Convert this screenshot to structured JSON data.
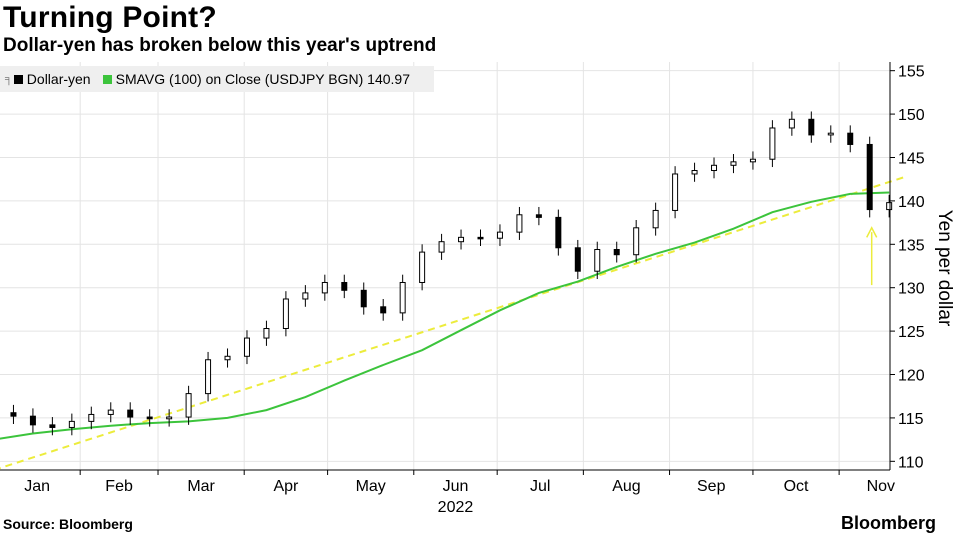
{
  "title": "Turning Point?",
  "subtitle": "Dollar-yen has broken below this year's uptrend",
  "source": "Source: Bloomberg",
  "brand": "Bloomberg",
  "legend": {
    "items": [
      {
        "label": "Dollar-yen",
        "color": "#000000",
        "icon": "candlestick-icon"
      },
      {
        "label": "SMAVG (100)  on Close (USDJPY BGN) 140.97",
        "color": "#3cc43c"
      }
    ]
  },
  "colors": {
    "price": "#000000",
    "sma": "#3cc43c",
    "trend": "#ecec3c",
    "arrow": "#ecec3c",
    "grid": "#e4e4e4"
  },
  "chart_data": {
    "type": "line",
    "title": "Turning Point?",
    "subtitle": "Dollar-yen has broken below this year's uptrend",
    "ylabel": "Yen per dollar",
    "xlabel": "2022",
    "x_axis_year": "2022",
    "x_tick_labels": [
      "Jan",
      "Feb",
      "Mar",
      "Apr",
      "May",
      "Jun",
      "Jul",
      "Aug",
      "Sep",
      "Oct",
      "Nov"
    ],
    "y_ticks": [
      110,
      115,
      120,
      125,
      130,
      135,
      140,
      145,
      150,
      155
    ],
    "ylim": [
      109,
      156
    ],
    "y_axis_side": "right",
    "grid": true,
    "legend_position": "top-left",
    "last_sma_value": 140.97,
    "series": [
      {
        "name": "Dollar-yen",
        "style": "candlestick",
        "x": [
          "Jan 1",
          "Jan 8",
          "Jan 15",
          "Jan 22",
          "Jan 29",
          "Feb 5",
          "Feb 12",
          "Feb 19",
          "Feb 26",
          "Mar 5",
          "Mar 12",
          "Mar 19",
          "Mar 26",
          "Apr 2",
          "Apr 9",
          "Apr 16",
          "Apr 23",
          "Apr 30",
          "May 7",
          "May 14",
          "May 21",
          "May 28",
          "Jun 4",
          "Jun 11",
          "Jun 18",
          "Jun 25",
          "Jul 2",
          "Jul 9",
          "Jul 16",
          "Jul 23",
          "Jul 30",
          "Aug 6",
          "Aug 13",
          "Aug 20",
          "Aug 27",
          "Sep 3",
          "Sep 10",
          "Sep 17",
          "Sep 24",
          "Oct 1",
          "Oct 8",
          "Oct 15",
          "Oct 22",
          "Oct 29",
          "Nov 5",
          "Nov 12",
          "Nov 19"
        ],
        "values": [
          115.6,
          115.2,
          114.2,
          113.9,
          114.6,
          115.4,
          115.9,
          115.1,
          114.9,
          115.1,
          117.8,
          121.7,
          122.1,
          124.2,
          125.3,
          128.7,
          129.4,
          130.6,
          129.7,
          127.8,
          127.1,
          130.6,
          134.1,
          135.3,
          135.8,
          135.7,
          136.4,
          138.4,
          138.1,
          134.6,
          131.9,
          134.4,
          133.8,
          136.9,
          138.9,
          143.1,
          143.5,
          144.1,
          144.5,
          144.8,
          148.4,
          149.4,
          147.6,
          147.8,
          146.5,
          139.0,
          139.8
        ]
      },
      {
        "name": "SMAVG (100)  on Close (USDJPY BGN)",
        "style": "line",
        "x": [
          "Jan 1",
          "Jan 15",
          "Jan 29",
          "Feb 12",
          "Feb 26",
          "Mar 12",
          "Mar 26",
          "Apr 9",
          "Apr 23",
          "May 7",
          "May 21",
          "Jun 4",
          "Jun 18",
          "Jul 2",
          "Jul 16",
          "Jul 30",
          "Aug 13",
          "Aug 27",
          "Sep 10",
          "Sep 24",
          "Oct 8",
          "Oct 22",
          "Nov 5",
          "Nov 19"
        ],
        "values": [
          112.5,
          113.2,
          113.7,
          114.1,
          114.4,
          114.6,
          115.0,
          115.9,
          117.4,
          119.3,
          121.1,
          122.8,
          125.1,
          127.4,
          129.4,
          130.7,
          132.4,
          133.9,
          135.2,
          136.8,
          138.7,
          139.9,
          140.8,
          140.97
        ]
      },
      {
        "name": "Uptrend",
        "style": "dashed",
        "x": [
          "Jan 1",
          "Nov 19"
        ],
        "values": [
          109.0,
          142.5
        ]
      }
    ]
  }
}
